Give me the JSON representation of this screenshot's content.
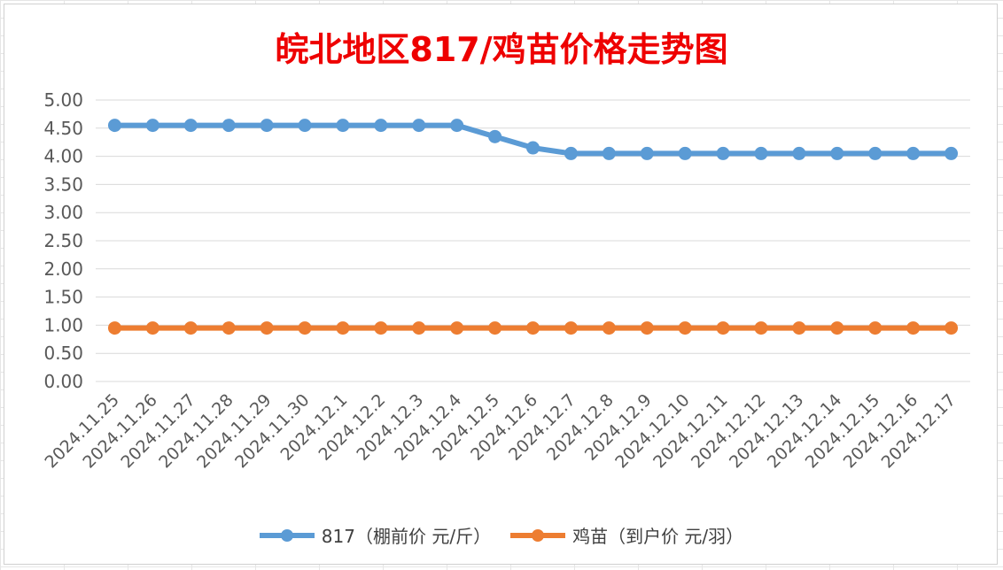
{
  "chart_data": {
    "type": "line",
    "title": "皖北地区817/鸡苗价格走势图",
    "xlabel": "",
    "ylabel": "",
    "ylim": [
      0,
      5
    ],
    "yticks": [
      "0.00",
      "0.50",
      "1.00",
      "1.50",
      "2.00",
      "2.50",
      "3.00",
      "3.50",
      "4.00",
      "4.50",
      "5.00"
    ],
    "grid": true,
    "legend_position": "bottom",
    "categories": [
      "2024.11.25",
      "2024.11.26",
      "2024.11.27",
      "2024.11.28",
      "2024.11.29",
      "2024.11.30",
      "2024.12.1",
      "2024.12.2",
      "2024.12.3",
      "2024.12.4",
      "2024.12.5",
      "2024.12.6",
      "2024.12.7",
      "2024.12.8",
      "2024.12.9",
      "2024.12.10",
      "2024.12.11",
      "2024.12.12",
      "2024.12.13",
      "2024.12.14",
      "2024.12.15",
      "2024.12.16",
      "2024.12.17"
    ],
    "series": [
      {
        "name": "817（棚前价 元/斤）",
        "color": "#5b9bd5",
        "values": [
          4.55,
          4.55,
          4.55,
          4.55,
          4.55,
          4.55,
          4.55,
          4.55,
          4.55,
          4.55,
          4.35,
          4.15,
          4.05,
          4.05,
          4.05,
          4.05,
          4.05,
          4.05,
          4.05,
          4.05,
          4.05,
          4.05,
          4.05
        ]
      },
      {
        "name": "鸡苗（到户价 元/羽）",
        "color": "#ed7d31",
        "values": [
          0.95,
          0.95,
          0.95,
          0.95,
          0.95,
          0.95,
          0.95,
          0.95,
          0.95,
          0.95,
          0.95,
          0.95,
          0.95,
          0.95,
          0.95,
          0.95,
          0.95,
          0.95,
          0.95,
          0.95,
          0.95,
          0.95,
          0.95
        ]
      }
    ]
  }
}
